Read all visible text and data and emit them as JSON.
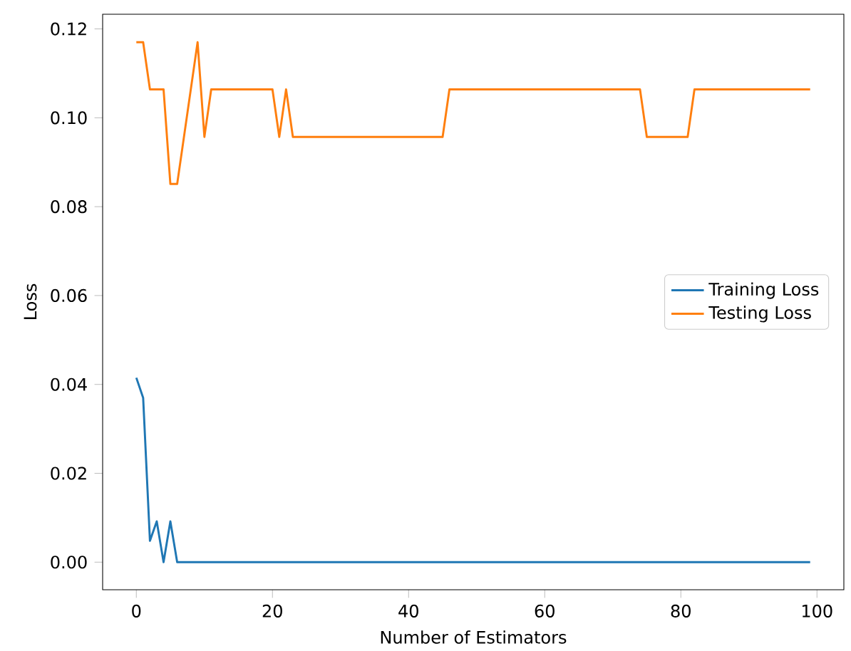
{
  "chart_data": {
    "type": "line",
    "xlabel": "Number of Estimators",
    "ylabel": "Loss",
    "series": [
      {
        "name": "Training Loss",
        "color": "#1f77b4",
        "x": [
          0,
          1,
          2,
          3,
          4,
          5,
          6,
          99
        ],
        "values": [
          0.0415,
          0.037,
          0.0048,
          0.0092,
          0.0,
          0.0092,
          0.0,
          0.0
        ]
      },
      {
        "name": "Testing Loss",
        "color": "#ff7f0e",
        "x": [
          0,
          1,
          2,
          4,
          5,
          6,
          9,
          10,
          11,
          20,
          21,
          22,
          23,
          45,
          46,
          74,
          75,
          81,
          82,
          99
        ],
        "values": [
          0.117,
          0.117,
          0.1064,
          0.1064,
          0.0851,
          0.0851,
          0.117,
          0.0957,
          0.1064,
          0.1064,
          0.0957,
          0.1064,
          0.0957,
          0.0957,
          0.1064,
          0.1064,
          0.0957,
          0.0957,
          0.1064,
          0.1064
        ]
      }
    ],
    "xlim": [
      -4.95,
      103.95
    ],
    "ylim": [
      -0.0062,
      0.1233
    ],
    "xticks": [
      0,
      20,
      40,
      60,
      80,
      100
    ],
    "yticks": [
      {
        "value": 0,
        "label": "0.00"
      },
      {
        "value": 0.02,
        "label": "0.02"
      },
      {
        "value": 0.04,
        "label": "0.04"
      },
      {
        "value": 0.06,
        "label": "0.06"
      },
      {
        "value": 0.08,
        "label": "0.08"
      },
      {
        "value": 0.1,
        "label": "0.10"
      },
      {
        "value": 0.12,
        "label": "0.12"
      }
    ],
    "legend": "right",
    "grid": false,
    "marker": "none",
    "line_style": "solid"
  }
}
